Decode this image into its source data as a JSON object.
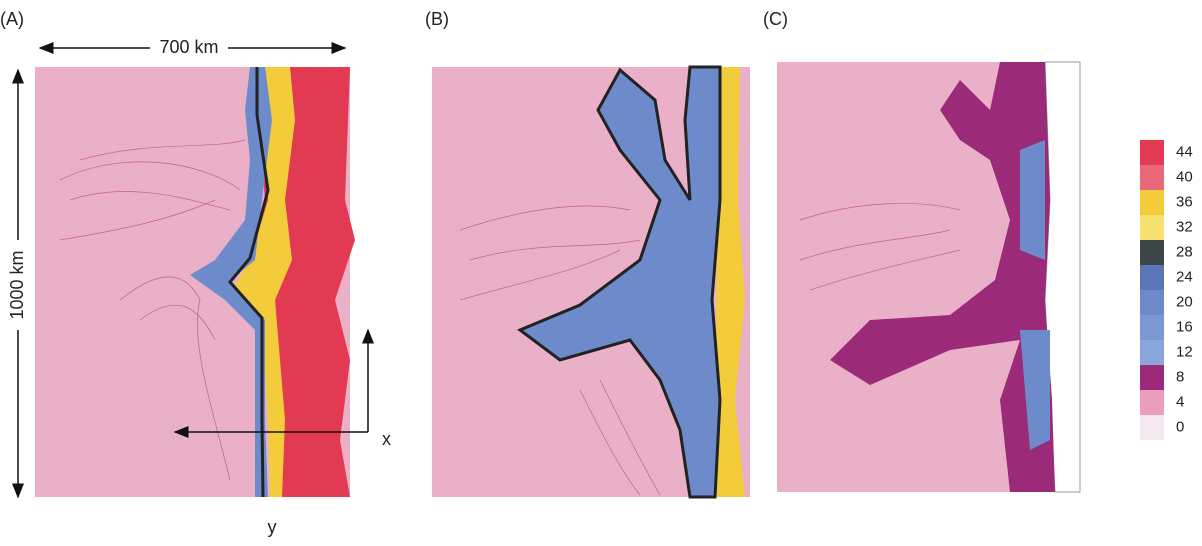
{
  "panels": [
    {
      "label": "(A)"
    },
    {
      "label": "(B)"
    },
    {
      "label": "(C)"
    }
  ],
  "annotations": {
    "width": "700 km",
    "height": "1000 km",
    "x_axis": "x",
    "y_axis": "y"
  },
  "colorbar": {
    "ticks": [
      44,
      40,
      36,
      32,
      28,
      24,
      20,
      16,
      12,
      8,
      4,
      0
    ],
    "colors": [
      "#e23a52",
      "#ea6878",
      "#f3cc3c",
      "#f6e070",
      "#3a4648",
      "#5a76b8",
      "#6d8bcb",
      "#7b98d4",
      "#8ca6dc",
      "#9b2a78",
      "#ec9cbc",
      "#f4e8f0"
    ]
  }
}
